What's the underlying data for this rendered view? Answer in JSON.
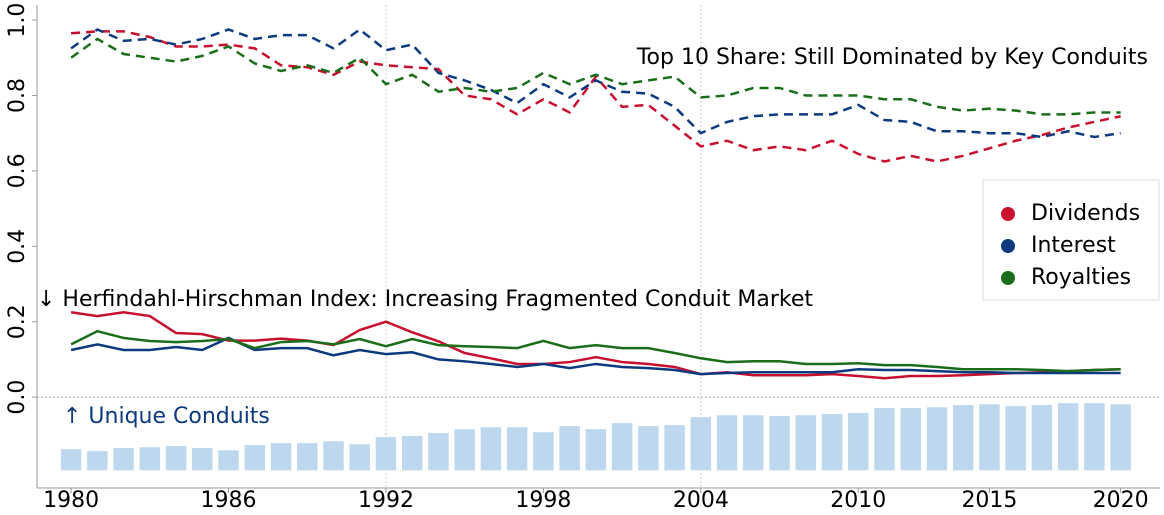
{
  "chart_data": {
    "type": "line",
    "annotations": [
      "Top 10 Share: Still Dominated by Key Conduits",
      "↓ Herfindahl-Hirschman Index: Increasing Fragmented Conduit Market",
      "↑ Unique Conduits"
    ],
    "x": [
      1980,
      1981,
      1982,
      1983,
      1984,
      1985,
      1986,
      1987,
      1988,
      1989,
      1990,
      1991,
      1992,
      1993,
      1994,
      1995,
      1996,
      1997,
      1998,
      1999,
      2000,
      2001,
      2002,
      2003,
      2004,
      2005,
      2006,
      2007,
      2008,
      2009,
      2010,
      2011,
      2012,
      2013,
      2014,
      2015,
      2016,
      2017,
      2018,
      2019,
      2020
    ],
    "series": [
      {
        "name": "Dividends",
        "color": "#c8102e",
        "values": [
          0.965,
          0.97,
          0.97,
          0.955,
          0.93,
          0.93,
          0.935,
          0.925,
          0.88,
          0.875,
          0.855,
          0.89,
          0.88,
          0.875,
          0.87,
          0.8,
          0.79,
          0.75,
          0.79,
          0.755,
          0.85,
          0.77,
          0.775,
          0.72,
          0.665,
          0.68,
          0.655,
          0.665,
          0.655,
          0.68,
          0.645,
          0.625,
          0.64,
          0.625,
          0.64,
          0.66,
          0.68,
          0.695,
          0.715,
          0.73,
          0.745
        ],
        "hhi": [
          0.225,
          0.215,
          0.225,
          0.215,
          0.17,
          0.167,
          0.15,
          0.15,
          0.155,
          0.15,
          0.138,
          0.178,
          0.2,
          0.172,
          0.148,
          0.117,
          0.103,
          0.088,
          0.088,
          0.093,
          0.106,
          0.093,
          0.088,
          0.08,
          0.061,
          0.066,
          0.058,
          0.058,
          0.058,
          0.061,
          0.056,
          0.05,
          0.056,
          0.056,
          0.058,
          0.061,
          0.064,
          0.066,
          0.069,
          0.072,
          0.074
        ]
      },
      {
        "name": "Interest",
        "color": "#0b3a7e",
        "values": [
          0.925,
          0.975,
          0.945,
          0.95,
          0.935,
          0.95,
          0.975,
          0.95,
          0.96,
          0.96,
          0.925,
          0.975,
          0.92,
          0.935,
          0.86,
          0.84,
          0.815,
          0.78,
          0.83,
          0.795,
          0.84,
          0.81,
          0.805,
          0.77,
          0.7,
          0.73,
          0.745,
          0.75,
          0.75,
          0.75,
          0.775,
          0.735,
          0.73,
          0.705,
          0.705,
          0.7,
          0.7,
          0.69,
          0.705,
          0.69,
          0.7
        ],
        "hhi": [
          0.125,
          0.14,
          0.125,
          0.125,
          0.133,
          0.125,
          0.157,
          0.125,
          0.13,
          0.13,
          0.111,
          0.125,
          0.114,
          0.119,
          0.1,
          0.095,
          0.088,
          0.08,
          0.088,
          0.077,
          0.088,
          0.08,
          0.077,
          0.072,
          0.061,
          0.064,
          0.066,
          0.066,
          0.066,
          0.066,
          0.074,
          0.072,
          0.072,
          0.069,
          0.066,
          0.066,
          0.064,
          0.064,
          0.064,
          0.064,
          0.064
        ]
      },
      {
        "name": "Royalties",
        "color": "#1a6e1a",
        "values": [
          0.9,
          0.95,
          0.91,
          0.9,
          0.89,
          0.905,
          0.93,
          0.885,
          0.865,
          0.88,
          0.86,
          0.9,
          0.83,
          0.855,
          0.81,
          0.82,
          0.81,
          0.82,
          0.86,
          0.83,
          0.855,
          0.83,
          0.84,
          0.85,
          0.795,
          0.8,
          0.82,
          0.82,
          0.8,
          0.8,
          0.8,
          0.79,
          0.79,
          0.77,
          0.76,
          0.765,
          0.76,
          0.75,
          0.75,
          0.755,
          0.755
        ],
        "hhi": [
          0.14,
          0.175,
          0.157,
          0.149,
          0.146,
          0.149,
          0.154,
          0.13,
          0.146,
          0.149,
          0.14,
          0.154,
          0.135,
          0.154,
          0.138,
          0.135,
          0.133,
          0.13,
          0.149,
          0.13,
          0.138,
          0.13,
          0.13,
          0.117,
          0.103,
          0.093,
          0.095,
          0.095,
          0.088,
          0.088,
          0.09,
          0.085,
          0.085,
          0.08,
          0.074,
          0.074,
          0.074,
          0.072,
          0.069,
          0.072,
          0.074
        ]
      }
    ],
    "bars": {
      "color": "#bdd7ee",
      "base": -0.194,
      "values": [
        -0.138,
        -0.143,
        -0.135,
        -0.133,
        -0.13,
        -0.135,
        -0.141,
        -0.127,
        -0.122,
        -0.122,
        -0.117,
        -0.125,
        -0.106,
        -0.103,
        -0.095,
        -0.085,
        -0.08,
        -0.08,
        -0.093,
        -0.077,
        -0.085,
        -0.069,
        -0.077,
        -0.074,
        -0.053,
        -0.048,
        -0.048,
        -0.05,
        -0.048,
        -0.045,
        -0.042,
        -0.029,
        -0.029,
        -0.027,
        -0.021,
        -0.019,
        -0.024,
        -0.021,
        -0.016,
        -0.016,
        -0.019
      ]
    },
    "xlim": [
      1978.7,
      2021.5
    ],
    "ylim": [
      -0.241,
      1.04
    ],
    "xticks": [
      1980,
      1986,
      1992,
      1998,
      2004,
      2010,
      2015,
      2020
    ],
    "yticks": [
      {
        "value": 0,
        "label": "0.0"
      },
      0.2,
      0.4,
      0.6,
      0.8,
      {
        "value": 1,
        "label": "1.0"
      }
    ],
    "xgrid": [
      1992,
      2004
    ],
    "hline": 0,
    "legend": "right"
  }
}
